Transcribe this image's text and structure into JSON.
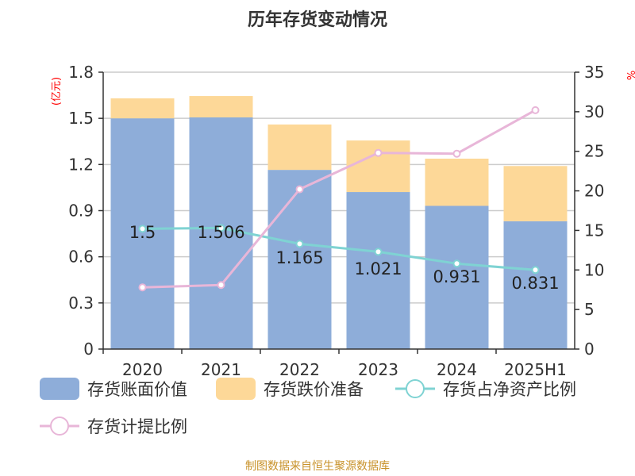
{
  "chart_data": {
    "type": "bar",
    "title": "历年存货变动情况",
    "categories": [
      "2020",
      "2021",
      "2022",
      "2023",
      "2024",
      "2025H1"
    ],
    "left_axis": {
      "label": "(亿元)",
      "ylim": [
        0,
        1.8
      ],
      "ticks": [
        "0",
        "0.3",
        "0.6",
        "0.9",
        "1.2",
        "1.5",
        "1.8"
      ]
    },
    "right_axis": {
      "label": "%",
      "ylim": [
        0,
        35
      ],
      "ticks": [
        "0",
        "5",
        "10",
        "15",
        "20",
        "25",
        "30",
        "35"
      ]
    },
    "series": [
      {
        "name": "存货账面价值",
        "type": "bar",
        "stack": "a",
        "axis": "left",
        "color": "#8eadd9",
        "values": [
          1.5,
          1.506,
          1.165,
          1.021,
          0.931,
          0.831
        ],
        "labels": [
          "1.5",
          "1.506",
          "1.165",
          "1.021",
          "0.931",
          "0.831"
        ]
      },
      {
        "name": "存货跌价准备",
        "type": "bar",
        "stack": "a",
        "axis": "left",
        "color": "#fdd898",
        "values": [
          0.13,
          0.139,
          0.295,
          0.335,
          0.307,
          0.359
        ]
      },
      {
        "name": "存货占净资产比例",
        "type": "line",
        "axis": "right",
        "color": "#7fd3d3",
        "values": [
          15.2,
          15.3,
          13.3,
          12.3,
          10.8,
          10.0
        ]
      },
      {
        "name": "存货计提比例",
        "type": "line",
        "axis": "right",
        "color": "#e8b6d8",
        "values": [
          7.8,
          8.1,
          20.2,
          24.8,
          24.7,
          30.2
        ]
      }
    ],
    "grid": true,
    "legend_position": "bottom"
  },
  "footer": "制图数据来自恒生聚源数据库"
}
